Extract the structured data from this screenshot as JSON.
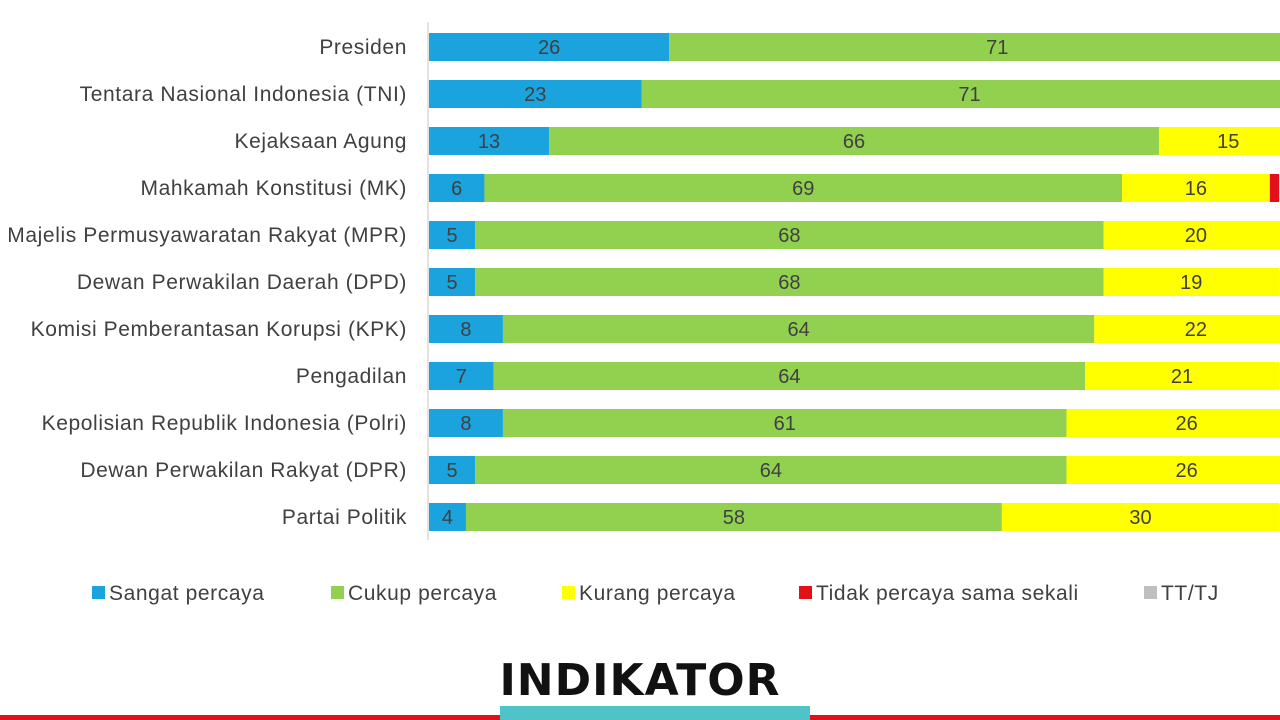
{
  "chart_data": {
    "type": "bar",
    "orientation": "horizontal",
    "stacked": true,
    "categories": [
      "Presiden",
      "Tentara Nasional Indonesia (TNI)",
      "Kejaksaan Agung",
      "Mahkamah Konstitusi (MK)",
      "Majelis Permusyawaratan Rakyat (MPR)",
      "Dewan Perwakilan Daerah (DPD)",
      "Komisi Pemberantasan Korupsi (KPK)",
      "Pengadilan",
      "Kepolisian Republik Indonesia (Polri)",
      "Dewan Perwakilan Rakyat (DPR)",
      "Partai Politik"
    ],
    "series": [
      {
        "name": "Sangat percaya",
        "color": "#1aa3dc",
        "values": [
          26,
          23,
          13,
          6,
          5,
          5,
          8,
          7,
          8,
          5,
          4
        ]
      },
      {
        "name": "Cukup percaya",
        "color": "#92d050",
        "values": [
          71,
          71,
          66,
          69,
          68,
          68,
          64,
          64,
          61,
          64,
          58
        ]
      },
      {
        "name": "Kurang percaya",
        "color": "#ffff00",
        "values": [
          null,
          null,
          15,
          16,
          20,
          19,
          22,
          21,
          26,
          26,
          30
        ]
      },
      {
        "name": "Tidak percaya sama sekali",
        "color": "#e3101a",
        "values": [
          null,
          null,
          null,
          1,
          null,
          null,
          null,
          null,
          null,
          null,
          null
        ]
      },
      {
        "name": "TT/TJ",
        "color": "#bfbfbf",
        "values": [
          null,
          null,
          null,
          null,
          null,
          null,
          null,
          null,
          null,
          null,
          null
        ]
      }
    ],
    "legend_position": "bottom",
    "grid": false
  },
  "brand": {
    "logo_text": "INDIKATOR",
    "colors": {
      "red": "#e3101a",
      "teal": "#4fc3c8"
    }
  }
}
